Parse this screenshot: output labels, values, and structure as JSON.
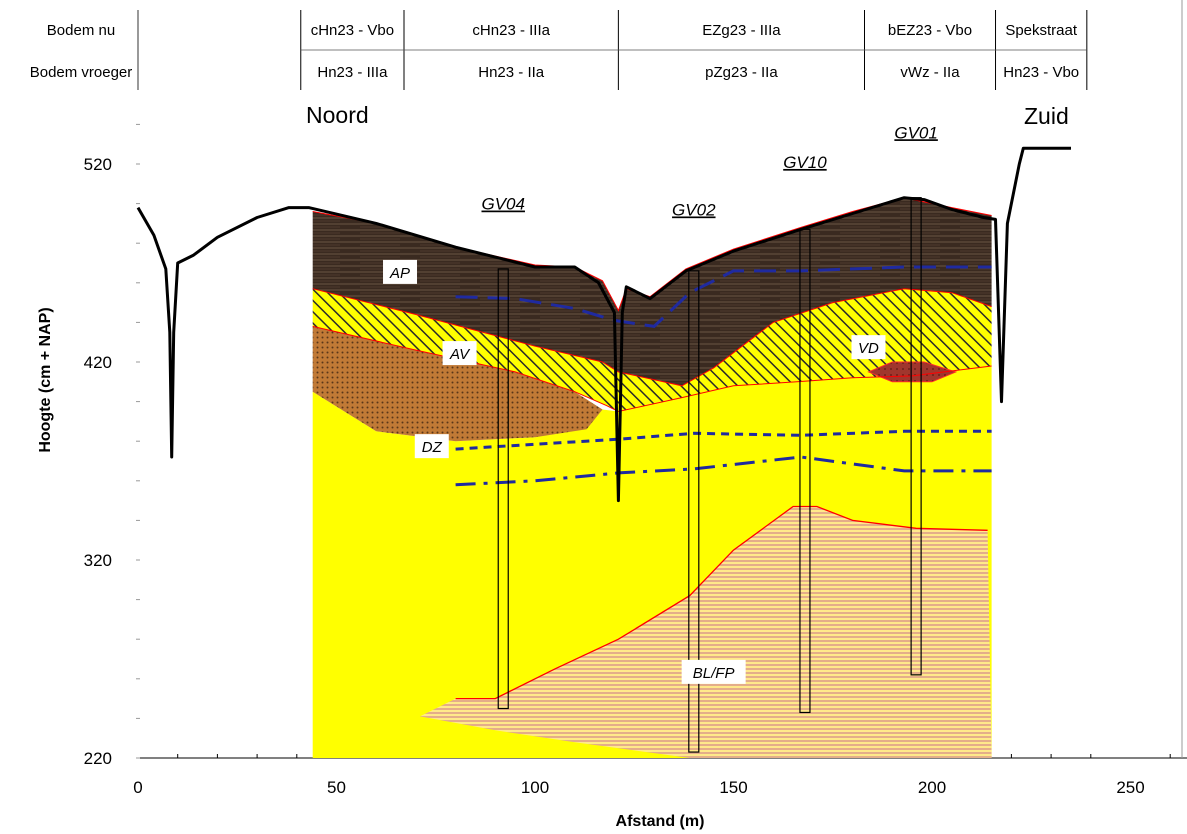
{
  "chart_data": {
    "type": "cross-section",
    "xlabel": "Afstand (m)",
    "ylabel": "Hoogte (cm + NAP)",
    "xlim": [
      0,
      260
    ],
    "ylim": [
      220,
      560
    ],
    "x_ticks": [
      0,
      50,
      100,
      150,
      200,
      250
    ],
    "y_ticks": [
      220,
      320,
      420,
      520
    ],
    "directions": {
      "left": "Noord",
      "right": "Zuid"
    },
    "soil_table": {
      "rows": [
        {
          "label": "Bodem nu",
          "cells": [
            {
              "text": "cHn23 - Vbo",
              "x0": 41,
              "x1": 67
            },
            {
              "text": "cHn23 - IIIa",
              "x0": 67,
              "x1": 121
            },
            {
              "text": "EZg23 - IIIa",
              "x0": 121,
              "x1": 183
            },
            {
              "text": "bEZ23 - Vbo",
              "x0": 183,
              "x1": 216
            },
            {
              "text": "Spekstraat",
              "x0": 216,
              "x1": 239
            }
          ]
        },
        {
          "label": "Bodem vroeger",
          "cells": [
            {
              "text": "Hn23 - IIIa",
              "x0": 41,
              "x1": 67
            },
            {
              "text": "Hn23 - IIa",
              "x0": 67,
              "x1": 121
            },
            {
              "text": "pZg23 - IIa",
              "x0": 121,
              "x1": 183
            },
            {
              "text": "vWz - IIa",
              "x0": 183,
              "x1": 216
            },
            {
              "text": "Hn23 - Vbo",
              "x0": 216,
              "x1": 239
            }
          ]
        }
      ]
    },
    "surface_profile": [
      [
        0,
        498
      ],
      [
        4,
        484
      ],
      [
        7,
        467
      ],
      [
        8,
        435
      ],
      [
        8.5,
        372
      ],
      [
        9,
        435
      ],
      [
        10,
        470
      ],
      [
        14,
        474
      ],
      [
        20,
        483
      ],
      [
        30,
        493
      ],
      [
        38,
        498
      ],
      [
        43,
        498
      ],
      [
        60,
        490
      ],
      [
        80,
        478
      ],
      [
        100,
        468
      ],
      [
        110,
        468
      ],
      [
        116,
        460
      ],
      [
        120,
        445
      ],
      [
        121,
        350
      ],
      [
        122,
        445
      ],
      [
        123,
        458
      ],
      [
        129,
        452
      ],
      [
        138,
        466
      ],
      [
        150,
        476
      ],
      [
        167,
        487
      ],
      [
        180,
        495
      ],
      [
        193,
        503
      ],
      [
        198,
        502
      ],
      [
        205,
        497
      ],
      [
        213,
        493
      ],
      [
        216,
        492
      ],
      [
        217.5,
        400
      ],
      [
        219,
        490
      ],
      [
        222,
        520
      ],
      [
        223,
        528
      ],
      [
        235,
        528
      ]
    ],
    "units": [
      {
        "name": "AP",
        "label_pos": [
          66,
          465
        ],
        "top": [
          [
            44,
            496
          ],
          [
            60,
            490
          ],
          [
            80,
            478
          ],
          [
            100,
            469
          ],
          [
            110,
            468
          ],
          [
            117,
            461
          ],
          [
            121,
            446
          ],
          [
            123,
            457
          ],
          [
            129,
            453
          ],
          [
            138,
            467
          ],
          [
            150,
            477
          ],
          [
            167,
            488
          ],
          [
            180,
            496
          ],
          [
            193,
            503
          ],
          [
            205,
            498
          ],
          [
            215,
            494
          ]
        ],
        "bottom": [
          [
            44,
            457
          ],
          [
            70,
            444
          ],
          [
            100,
            428
          ],
          [
            117,
            420
          ],
          [
            121,
            415
          ],
          [
            137,
            408
          ],
          [
            145,
            417
          ],
          [
            160,
            440
          ],
          [
            175,
            450
          ],
          [
            193,
            457
          ],
          [
            205,
            455
          ],
          [
            215,
            448
          ]
        ]
      },
      {
        "name": "AV",
        "label_pos": [
          81,
          424
        ],
        "top": [
          [
            44,
            457
          ],
          [
            70,
            444
          ],
          [
            100,
            428
          ],
          [
            117,
            420
          ],
          [
            121,
            415
          ],
          [
            137,
            408
          ],
          [
            145,
            417
          ],
          [
            160,
            440
          ],
          [
            175,
            450
          ],
          [
            193,
            457
          ],
          [
            205,
            455
          ],
          [
            215,
            448
          ]
        ],
        "bottom": [
          [
            44,
            438
          ],
          [
            70,
            426
          ],
          [
            95,
            415
          ],
          [
            110,
            405
          ],
          [
            118,
            398
          ],
          [
            121,
            395
          ],
          [
            137,
            402
          ],
          [
            150,
            408
          ],
          [
            166,
            410
          ],
          [
            180,
            412
          ],
          [
            195,
            413
          ],
          [
            215,
            418
          ]
        ]
      },
      {
        "name": "VD",
        "label_pos": [
          184,
          427
        ],
        "shape": [
          [
            184,
            415
          ],
          [
            190,
            420
          ],
          [
            198,
            420
          ],
          [
            206,
            415
          ],
          [
            200,
            410
          ],
          [
            190,
            410
          ]
        ]
      },
      {
        "name": "DZ",
        "label_pos": [
          74,
          377
        ]
      },
      {
        "name": "BL/FP",
        "label_pos": [
          145,
          263
        ]
      }
    ],
    "brown_layer": [
      [
        44,
        438
      ],
      [
        70,
        426
      ],
      [
        95,
        415
      ],
      [
        110,
        405
      ],
      [
        117,
        396
      ],
      [
        113,
        386
      ],
      [
        100,
        382
      ],
      [
        80,
        380
      ],
      [
        60,
        385
      ],
      [
        44,
        405
      ]
    ],
    "sand_base": [
      [
        44,
        220
      ],
      [
        44,
        405
      ],
      [
        60,
        385
      ],
      [
        80,
        380
      ],
      [
        100,
        382
      ],
      [
        117,
        396
      ],
      [
        121,
        395
      ],
      [
        137,
        402
      ],
      [
        150,
        408
      ],
      [
        166,
        410
      ],
      [
        180,
        412
      ],
      [
        195,
        413
      ],
      [
        215,
        418
      ],
      [
        215,
        220
      ]
    ],
    "clay_peat_top": [
      [
        80,
        250
      ],
      [
        90,
        250
      ],
      [
        105,
        265
      ],
      [
        121,
        280
      ],
      [
        139,
        302
      ],
      [
        150,
        325
      ],
      [
        165,
        347
      ],
      [
        171,
        347
      ],
      [
        180,
        340
      ],
      [
        196,
        336
      ],
      [
        214,
        335
      ]
    ],
    "clay_peat_bottom": [
      [
        71,
        241
      ],
      [
        90,
        234
      ],
      [
        110,
        228
      ],
      [
        139,
        220
      ],
      [
        215,
        220
      ]
    ],
    "groundwater_lines": [
      {
        "style": "long-dash",
        "points": [
          [
            80,
            453
          ],
          [
            95,
            452
          ],
          [
            110,
            447
          ],
          [
            120,
            441
          ],
          [
            130,
            438
          ],
          [
            139,
            455
          ],
          [
            150,
            466
          ],
          [
            167,
            466
          ],
          [
            193,
            468
          ],
          [
            215,
            468
          ]
        ]
      },
      {
        "style": "short-dash",
        "points": [
          [
            80,
            376
          ],
          [
            121,
            381
          ],
          [
            140,
            384
          ],
          [
            167,
            383
          ],
          [
            193,
            385
          ],
          [
            215,
            385
          ]
        ]
      },
      {
        "style": "dash-dot",
        "points": [
          [
            80,
            358
          ],
          [
            100,
            360
          ],
          [
            121,
            364
          ],
          [
            140,
            366
          ],
          [
            167,
            372
          ],
          [
            193,
            365
          ],
          [
            215,
            365
          ]
        ]
      }
    ],
    "boreholes": [
      {
        "name": "GV04",
        "x": 92,
        "top": 467,
        "bottom": 245,
        "label_y": 497
      },
      {
        "name": "GV02",
        "x": 140,
        "top": 466,
        "bottom": 223,
        "label_y": 494
      },
      {
        "name": "GV10",
        "x": 168,
        "top": 487,
        "bottom": 243,
        "label_y": 518
      },
      {
        "name": "GV01",
        "x": 196,
        "top": 503,
        "bottom": 262,
        "label_y": 533
      }
    ],
    "colors": {
      "sand": "#ffff00",
      "peat": "#3b2b22",
      "brown_sand": "#c07a30",
      "clay_stripe": "#e8b08a",
      "red_boundary": "#ff0000",
      "water": "#1f2aa0"
    }
  }
}
